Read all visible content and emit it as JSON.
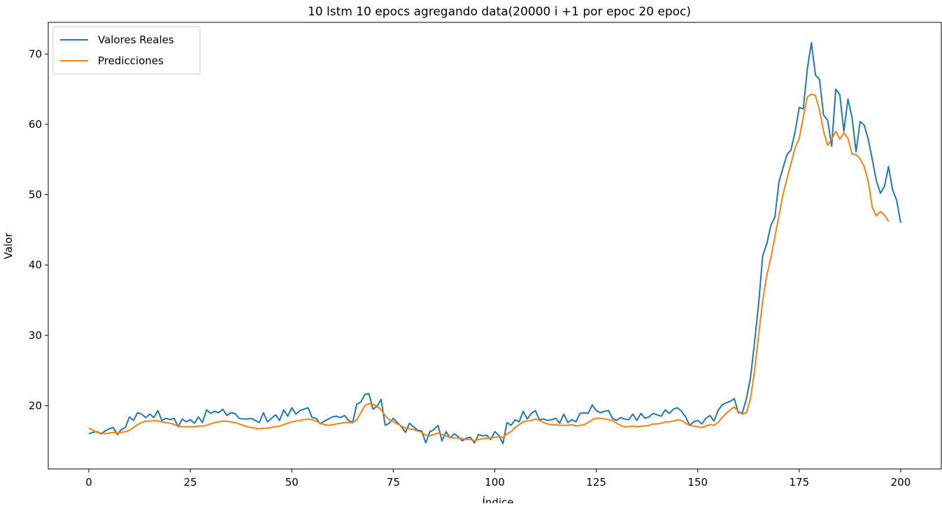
{
  "chart_data": {
    "type": "line",
    "title": "10 lstm 10 epocs agregando data(20000 i +1 por epoc 20 epoc)",
    "xlabel": "Índice",
    "ylabel": "Valor",
    "xlim": [
      -10,
      210
    ],
    "ylim": [
      11,
      74.5
    ],
    "xticks": [
      0,
      25,
      50,
      75,
      100,
      125,
      150,
      175,
      200
    ],
    "yticks": [
      20,
      30,
      40,
      50,
      60,
      70
    ],
    "grid": false,
    "legend_position": "upper-left",
    "series": [
      {
        "name": "Valores Reales",
        "color": "#1f77b4",
        "x_start": 0,
        "values": [
          16.0,
          16.2,
          16.3,
          16.0,
          16.4,
          16.7,
          16.9,
          15.9,
          16.6,
          16.9,
          18.4,
          17.9,
          19.0,
          18.8,
          18.3,
          18.8,
          18.3,
          19.3,
          17.9,
          18.2,
          18.0,
          18.2,
          17.0,
          18.1,
          17.7,
          18.0,
          17.5,
          18.4,
          17.6,
          19.4,
          18.9,
          19.2,
          19.0,
          19.5,
          18.6,
          19.0,
          18.9,
          18.2,
          18.1,
          18.1,
          18.2,
          17.9,
          17.6,
          19.0,
          17.7,
          18.2,
          18.7,
          17.9,
          19.4,
          18.5,
          19.7,
          18.8,
          19.3,
          19.5,
          19.7,
          18.3,
          18.2,
          17.4,
          17.8,
          18.1,
          18.4,
          18.5,
          18.3,
          18.6,
          17.9,
          17.6,
          20.2,
          20.5,
          21.6,
          21.7,
          19.5,
          19.9,
          20.9,
          17.2,
          17.5,
          18.2,
          17.6,
          17.0,
          16.2,
          17.5,
          17.0,
          16.5,
          16.4,
          14.7,
          16.3,
          16.6,
          17.2,
          15.0,
          16.3,
          15.4,
          16.0,
          15.6,
          15.0,
          15.4,
          15.5,
          14.7,
          15.9,
          15.7,
          15.8,
          15.2,
          16.3,
          15.8,
          14.6,
          17.6,
          17.2,
          18.0,
          17.7,
          19.2,
          18.1,
          18.9,
          19.3,
          18.0,
          18.1,
          17.9,
          18.0,
          18.2,
          17.5,
          18.8,
          17.6,
          18.0,
          17.7,
          18.9,
          19.0,
          18.9,
          20.1,
          19.3,
          19.0,
          19.2,
          19.3,
          18.2,
          17.9,
          18.3,
          18.1,
          18.0,
          18.8,
          17.9,
          18.9,
          18.2,
          18.4,
          18.9,
          18.7,
          18.5,
          19.4,
          18.9,
          19.5,
          19.7,
          19.2,
          18.4,
          17.2,
          17.7,
          17.9,
          17.4,
          18.2,
          18.6,
          17.8,
          19.3,
          20.1,
          20.4,
          20.6,
          21.0,
          19.0,
          19.0,
          21.0,
          24.0,
          29.0,
          34.5,
          41.3,
          43.0,
          45.6,
          46.8,
          51.8,
          53.8,
          55.7,
          56.4,
          59.0,
          62.4,
          62.2,
          67.9,
          71.6,
          67.0,
          66.4,
          61.3,
          60.6,
          56.9,
          65.0,
          64.2,
          59.0,
          63.6,
          61.0,
          56.1,
          60.4,
          59.9,
          57.9,
          55.0,
          52.0,
          50.2,
          51.2,
          54.0,
          50.7,
          49.2,
          46.0
        ]
      },
      {
        "name": "Predicciones",
        "color": "#ff7f0e",
        "x_start": 0,
        "values": [
          16.8,
          16.5,
          16.2,
          16.1,
          16.0,
          16.1,
          16.2,
          16.1,
          16.2,
          16.3,
          16.5,
          16.9,
          17.3,
          17.6,
          17.8,
          17.8,
          17.9,
          17.8,
          17.7,
          17.6,
          17.5,
          17.3,
          17.1,
          17.0,
          17.0,
          17.0,
          17.0,
          17.1,
          17.1,
          17.2,
          17.4,
          17.6,
          17.7,
          17.8,
          17.8,
          17.7,
          17.6,
          17.4,
          17.2,
          17.0,
          16.9,
          16.8,
          16.7,
          16.8,
          16.8,
          16.9,
          17.0,
          17.1,
          17.3,
          17.5,
          17.7,
          17.8,
          17.9,
          18.0,
          18.1,
          18.0,
          17.8,
          17.5,
          17.3,
          17.2,
          17.3,
          17.4,
          17.5,
          17.6,
          17.6,
          17.6,
          18.0,
          19.0,
          20.0,
          20.3,
          20.2,
          19.9,
          19.4,
          18.6,
          18.0,
          17.7,
          17.4,
          17.1,
          16.8,
          16.7,
          16.6,
          16.4,
          16.2,
          15.8,
          15.7,
          15.9,
          16.1,
          15.9,
          15.7,
          15.5,
          15.4,
          15.4,
          15.3,
          15.2,
          15.2,
          15.0,
          15.2,
          15.3,
          15.4,
          15.4,
          15.5,
          15.6,
          15.5,
          16.0,
          16.3,
          16.9,
          17.3,
          17.7,
          17.8,
          17.9,
          18.1,
          17.9,
          17.6,
          17.4,
          17.3,
          17.3,
          17.2,
          17.2,
          17.2,
          17.3,
          17.1,
          17.2,
          17.3,
          17.6,
          18.0,
          18.2,
          18.2,
          18.1,
          18.0,
          17.9,
          17.5,
          17.2,
          17.0,
          17.0,
          17.1,
          17.0,
          17.1,
          17.1,
          17.2,
          17.4,
          17.4,
          17.5,
          17.7,
          17.7,
          17.8,
          18.0,
          17.9,
          17.5,
          17.2,
          17.1,
          17.0,
          16.9,
          17.1,
          17.3,
          17.2,
          17.6,
          18.3,
          18.9,
          19.4,
          19.8,
          19.2,
          18.8,
          19.0,
          21.0,
          25.0,
          30.0,
          34.9,
          38.5,
          41.0,
          44.0,
          47.0,
          50.0,
          52.3,
          54.5,
          56.7,
          58.0,
          61.0,
          63.9,
          64.3,
          64.1,
          62.0,
          59.0,
          57.0,
          57.9,
          59.0,
          57.9,
          58.8,
          58.0,
          55.8,
          55.7,
          55.1,
          54.0,
          51.9,
          48.2,
          47.0,
          47.6,
          47.1,
          46.2
        ]
      }
    ]
  }
}
